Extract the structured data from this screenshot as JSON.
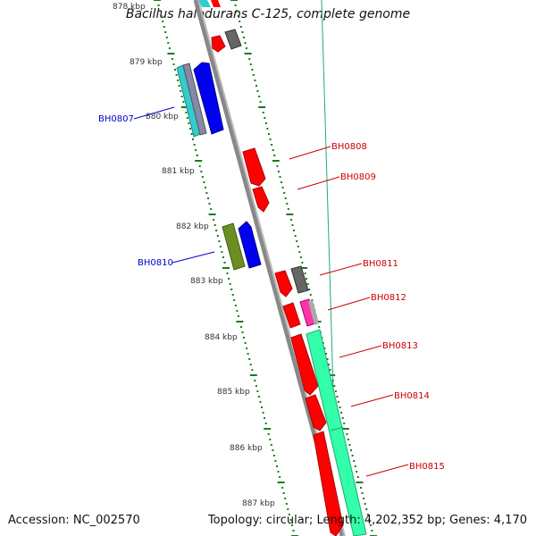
{
  "map": {
    "title": "Bacillus halodurans C-125, complete genome",
    "accession": "Accession: NC_002570",
    "summary": "Topology: circular; Length: 4,202,352 bp; Genes: 4,170",
    "kbp_ticks": [
      "878 kbp",
      "879 kbp",
      "880 kbp",
      "881 kbp",
      "882 kbp",
      "883 kbp",
      "884 kbp",
      "885 kbp",
      "886 kbp",
      "887 kbp"
    ],
    "gene_labels": [
      "BH0807",
      "BH0808",
      "BH0809",
      "BH0810",
      "BH0811",
      "BH0812",
      "BH0813",
      "BH0814",
      "BH0815"
    ],
    "colors": {
      "backbone": "#888888",
      "tick_dots": "#1a7a1a",
      "label_red": "#cc0000",
      "label_blue": "#0000cc",
      "gene_red": "#ff0000",
      "gene_blue": "#0000ee",
      "gene_grey": "#666666",
      "gene_cyan": "#33cccc",
      "gene_olive": "#6b8e23",
      "gene_magenta": "#ff33aa",
      "gene_green": "#33ffaa"
    }
  }
}
